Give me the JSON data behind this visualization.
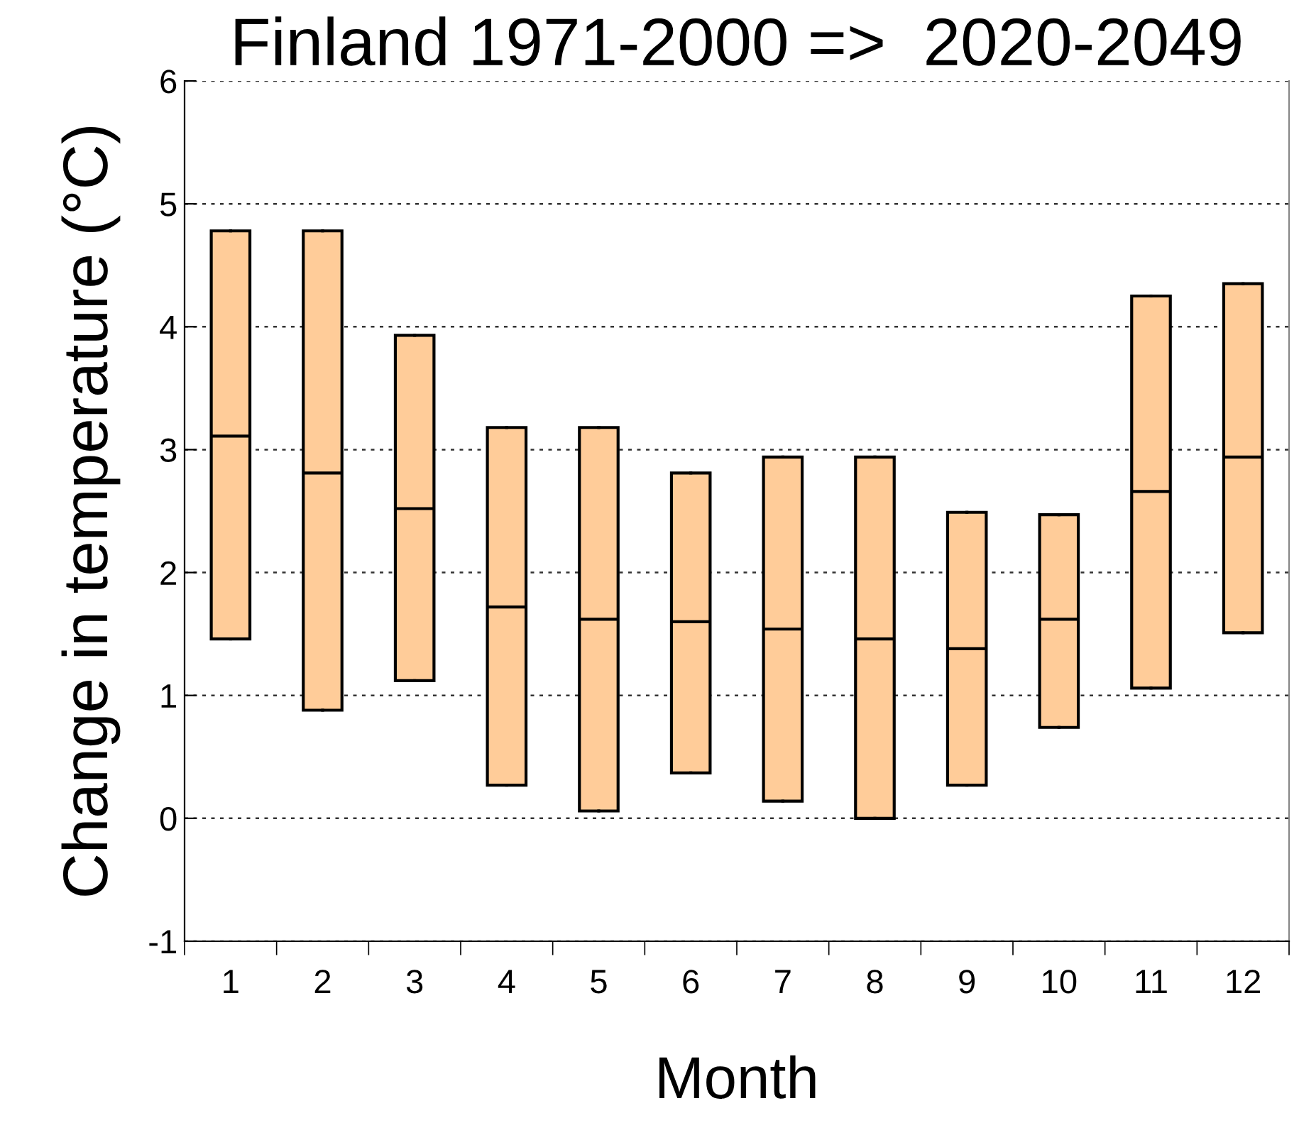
{
  "chart_data": {
    "type": "box",
    "title": "Finland 1971-2000 =>  2020-2049",
    "xlabel": "Month",
    "ylabel": "Change in temperature (°C)",
    "categories": [
      "1",
      "2",
      "3",
      "4",
      "5",
      "6",
      "7",
      "8",
      "9",
      "10",
      "11",
      "12"
    ],
    "color": "#ffcc99",
    "boxes": [
      {
        "low": 1.46,
        "q1": 1.46,
        "median": 3.11,
        "q3": 4.78,
        "high": 4.78
      },
      {
        "low": 0.88,
        "q1": 0.88,
        "median": 2.81,
        "q3": 4.78,
        "high": 4.78
      },
      {
        "low": 1.12,
        "q1": 1.12,
        "median": 2.52,
        "q3": 3.93,
        "high": 3.93
      },
      {
        "low": 0.27,
        "q1": 0.27,
        "median": 1.72,
        "q3": 3.18,
        "high": 3.18
      },
      {
        "low": 0.06,
        "q1": 0.06,
        "median": 1.62,
        "q3": 3.18,
        "high": 3.18
      },
      {
        "low": 0.37,
        "q1": 0.37,
        "median": 1.6,
        "q3": 2.81,
        "high": 2.81
      },
      {
        "low": 0.14,
        "q1": 0.14,
        "median": 1.54,
        "q3": 2.94,
        "high": 2.94
      },
      {
        "low": 0.0,
        "q1": 0.0,
        "median": 1.46,
        "q3": 2.94,
        "high": 2.94
      },
      {
        "low": 0.27,
        "q1": 0.27,
        "median": 1.38,
        "q3": 2.49,
        "high": 2.49
      },
      {
        "low": 0.74,
        "q1": 0.74,
        "median": 1.62,
        "q3": 2.47,
        "high": 2.47
      },
      {
        "low": 1.06,
        "q1": 1.06,
        "median": 2.66,
        "q3": 4.25,
        "high": 4.25
      },
      {
        "low": 1.51,
        "q1": 1.51,
        "median": 2.94,
        "q3": 4.35,
        "high": 4.35
      }
    ],
    "ylim": [
      -1,
      6
    ],
    "yticks": [
      -1,
      0,
      1,
      2,
      3,
      4,
      5,
      6
    ],
    "grid": "y"
  }
}
